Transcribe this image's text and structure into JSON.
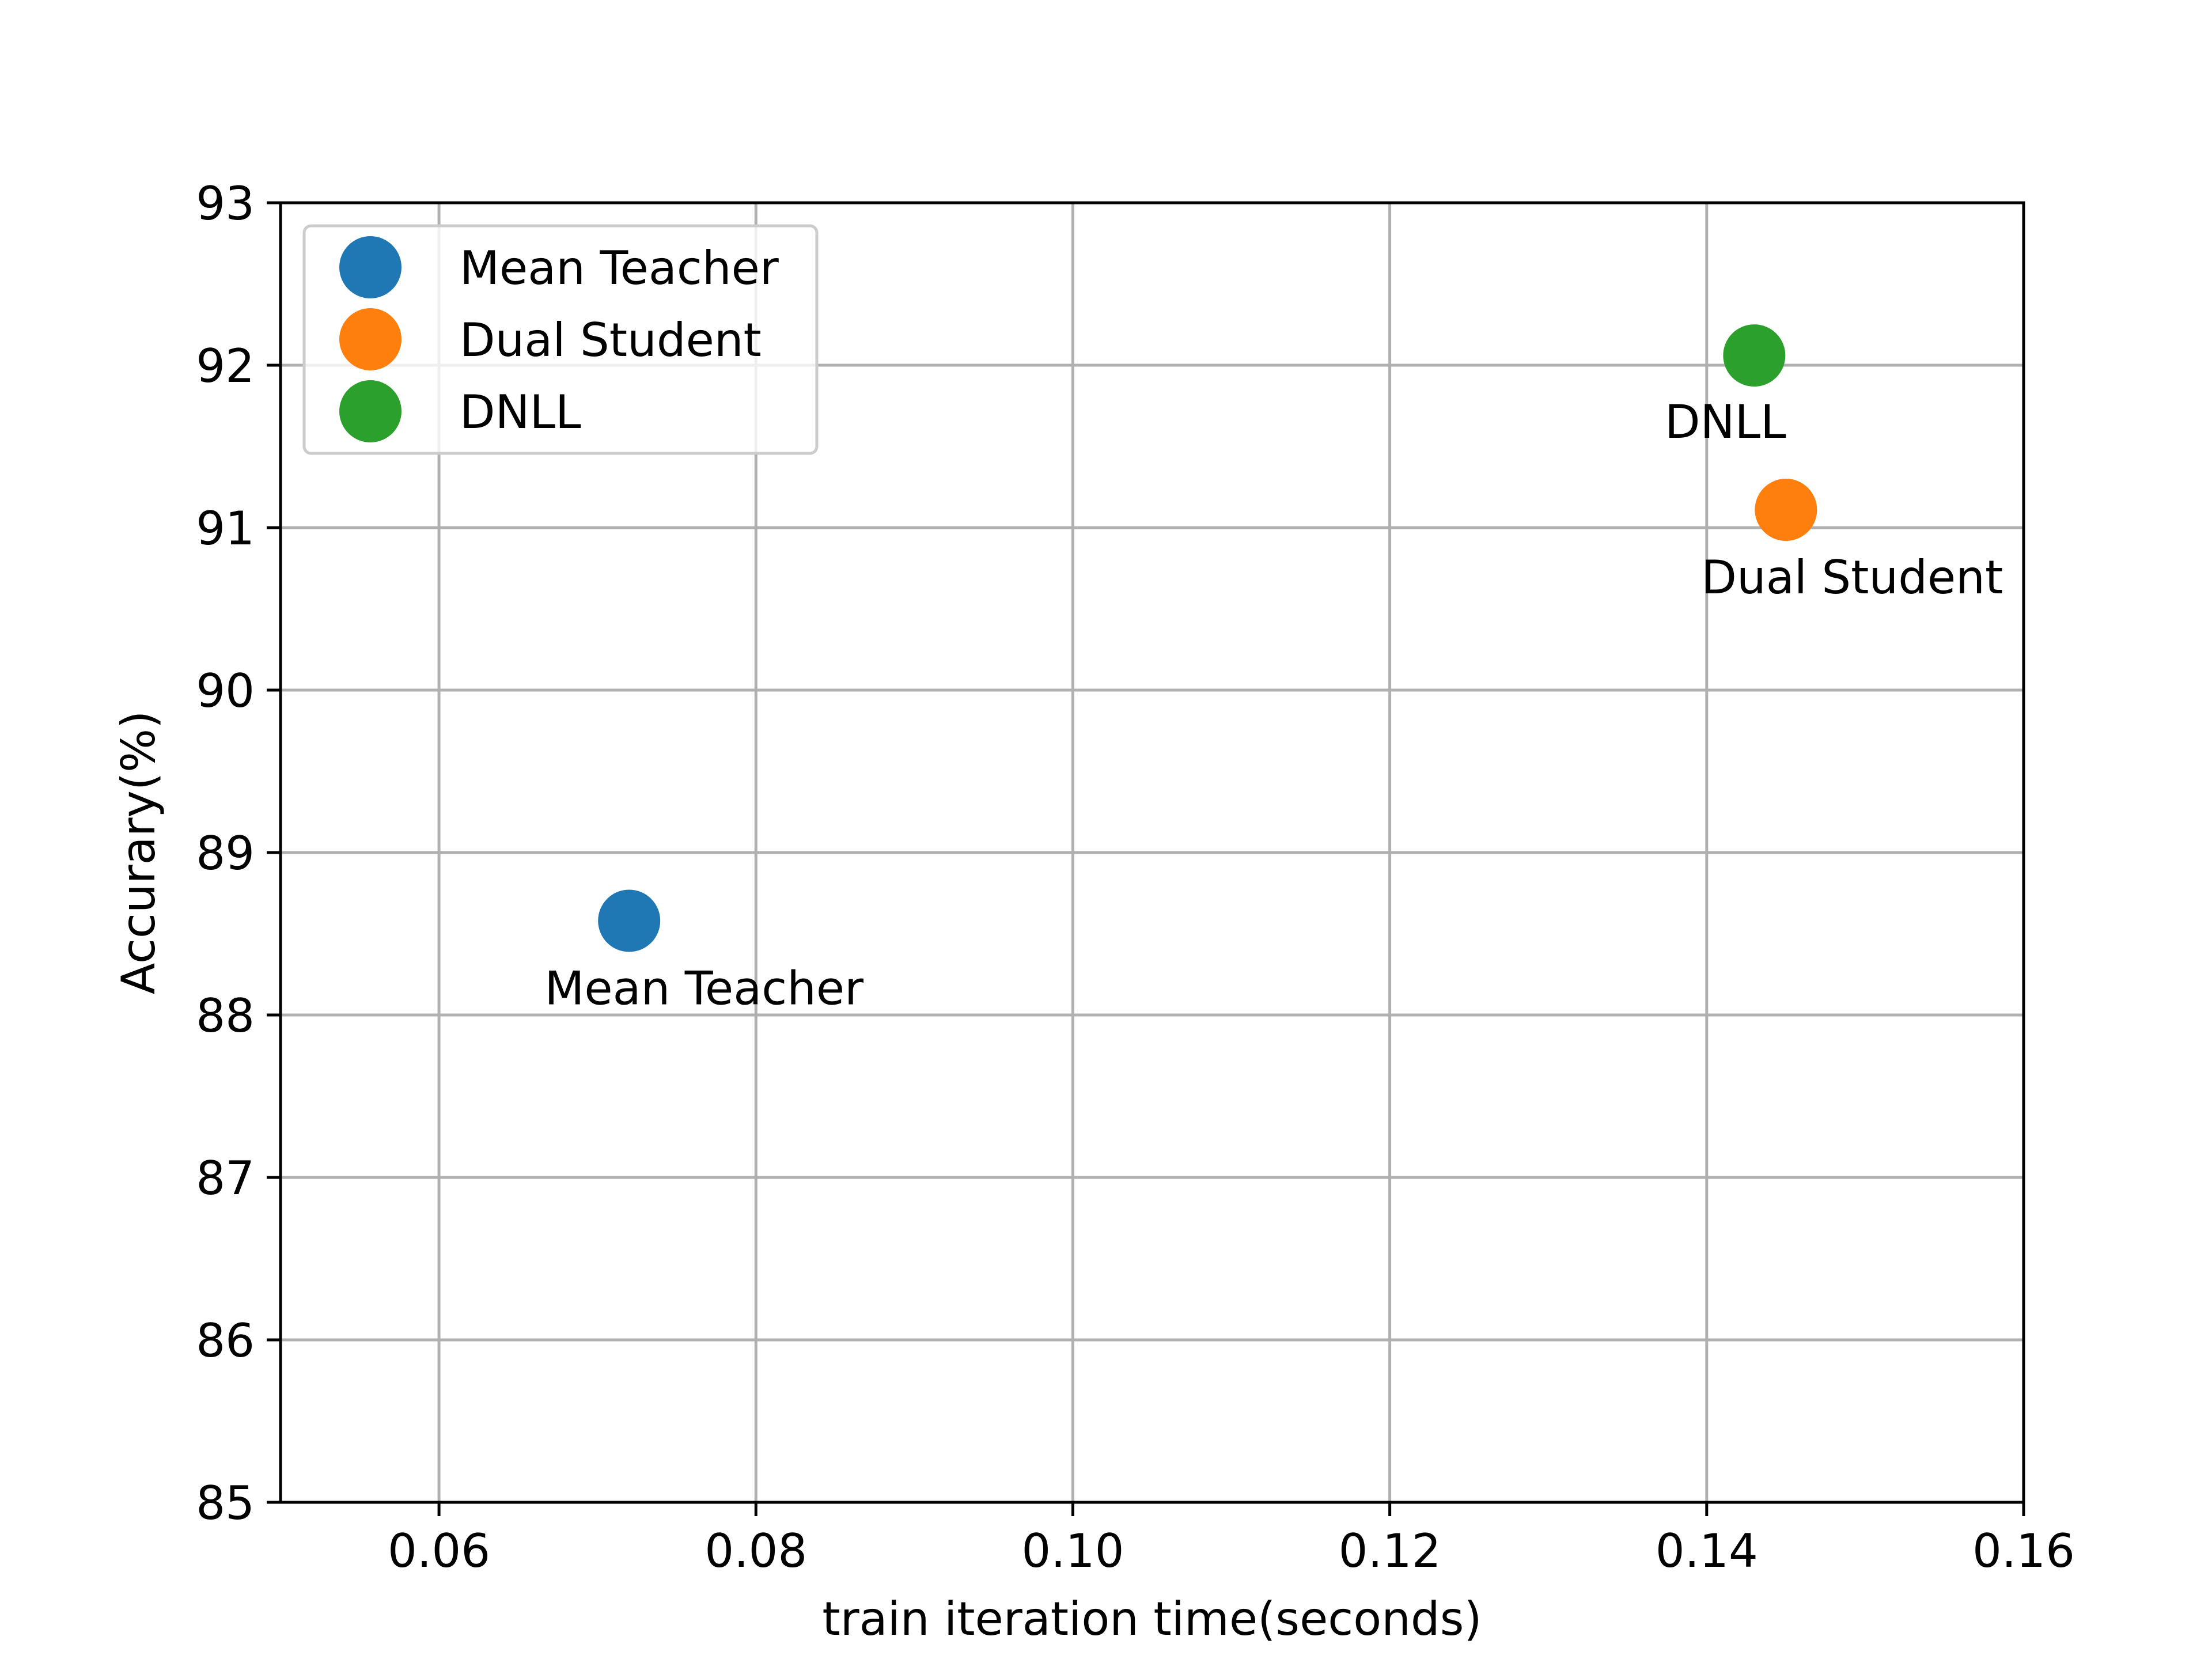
{
  "chart_data": {
    "type": "scatter",
    "title": "",
    "xlabel": "train iteration time(seconds)",
    "ylabel": "Accurary(%)",
    "xlim": [
      0.05,
      0.16
    ],
    "ylim": [
      85,
      93
    ],
    "xticks": [
      "0.06",
      "0.08",
      "0.10",
      "0.12",
      "0.14",
      "0.16"
    ],
    "yticks": [
      "85",
      "86",
      "87",
      "88",
      "89",
      "90",
      "91",
      "92",
      "93"
    ],
    "grid": true,
    "legend_position": "top-left",
    "series": [
      {
        "name": "Mean Teacher",
        "color": "#1f77b4",
        "x": 0.072,
        "y": 88.58,
        "label": "Mean Teacher"
      },
      {
        "name": "Dual Student",
        "color": "#ff7f0e",
        "x": 0.145,
        "y": 91.11,
        "label": "Dual Student"
      },
      {
        "name": "DNLL",
        "color": "#2ca02c",
        "x": 0.143,
        "y": 92.06,
        "label": "DNLL"
      }
    ]
  }
}
